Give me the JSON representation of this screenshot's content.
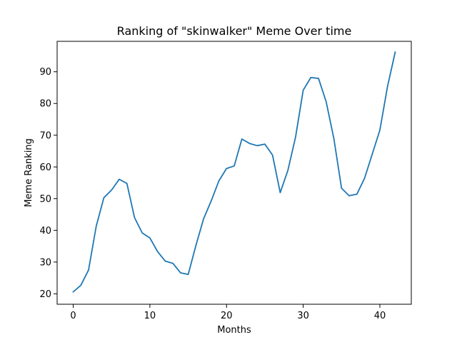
{
  "chart_data": {
    "type": "line",
    "title": "Ranking of \"skinwalker\" Meme Over time",
    "xlabel": "Months",
    "ylabel": "Meme Ranking",
    "xlim": [
      -2.1,
      44.1
    ],
    "ylim": [
      16.7,
      99.6
    ],
    "x_ticks": [
      0,
      10,
      20,
      30,
      40
    ],
    "y_ticks": [
      20,
      30,
      40,
      50,
      60,
      70,
      80,
      90
    ],
    "grid": false,
    "series": [
      {
        "color": "#1f77b4",
        "x": [
          0,
          1,
          2,
          3,
          4,
          5,
          6,
          7,
          8,
          9,
          10,
          11,
          12,
          13,
          14,
          15,
          16,
          17,
          18,
          19,
          20,
          21,
          22,
          23,
          24,
          25,
          26,
          27,
          28,
          29,
          30,
          31,
          32,
          33,
          34,
          35,
          36,
          37,
          38,
          39,
          40,
          41,
          42
        ],
        "values": [
          20.6,
          22.7,
          27.5,
          41.3,
          50.3,
          52.7,
          56.1,
          54.8,
          44.0,
          39.2,
          37.6,
          33.3,
          30.3,
          29.6,
          26.6,
          26.1,
          35.2,
          43.6,
          49.3,
          55.6,
          59.5,
          60.3,
          68.8,
          67.4,
          66.7,
          67.2,
          63.7,
          51.9,
          58.9,
          69.4,
          84.2,
          88.2,
          87.9,
          80.5,
          68.9,
          53.3,
          50.9,
          51.4,
          56.4,
          64.0,
          71.6,
          85.4,
          96.2
        ]
      }
    ]
  }
}
